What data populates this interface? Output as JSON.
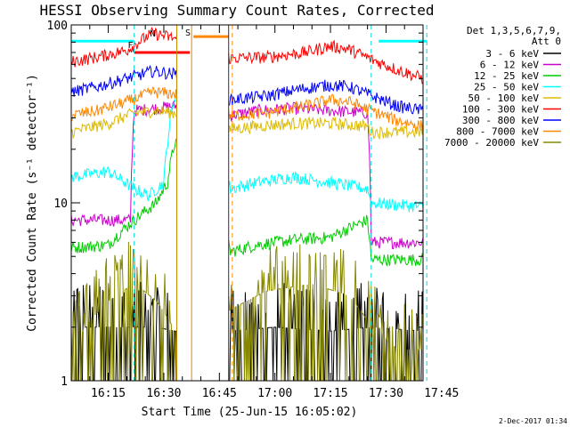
{
  "chart_data": {
    "type": "line",
    "title": "HESSI Observing Summary Count Rates, Corrected",
    "xlabel": "Start Time (25-Jun-15 16:05:02)",
    "ylabel": "Corrected Count Rate (s⁻¹ detector⁻¹)",
    "ylim": [
      1,
      100
    ],
    "yscale": "log",
    "xlim_minutes": [
      5,
      100
    ],
    "y_tick_labels": [
      "1",
      "10",
      "100"
    ],
    "x_tick_labels": [
      "16:15",
      "16:30",
      "16:45",
      "17:00",
      "17:15",
      "17:30",
      "17:45"
    ],
    "x_tick_minutes": [
      15,
      30,
      45,
      60,
      75,
      90,
      105
    ],
    "legend_header": [
      "Det 1,3,5,6,7,9,",
      "Att 0"
    ],
    "gaps": [
      [
        33.5,
        47.5
      ]
    ],
    "markers": {
      "dashed_cyan": [
        22,
        86,
        101
      ],
      "dashed_orange": [
        48.5
      ],
      "solid_orange": [
        37.5
      ],
      "cyan_bar_levels": [
        {
          "from": 5,
          "to": 22,
          "y": 81
        },
        {
          "from": 88,
          "to": 101,
          "y": 81
        }
      ],
      "red_bar_levels": [
        {
          "from": 22,
          "to": 37,
          "y": 70
        }
      ],
      "orange_bar_levels": [
        {
          "from": 38,
          "to": 47.5,
          "y": 86
        }
      ],
      "text_flags": [
        {
          "text": "F",
          "minute": 21,
          "y": 74
        },
        {
          "text": "N",
          "minute": 27,
          "y": 86
        },
        {
          "text": "S",
          "minute": 36.5,
          "y": 87
        }
      ]
    },
    "series": [
      {
        "name": "3 - 6 keV",
        "color": "#000000",
        "x": [
          5,
          15,
          22,
          28,
          33,
          48,
          60,
          75,
          86,
          100
        ],
        "y": [
          2,
          2,
          2,
          2,
          1.9,
          1.9,
          2,
          1.9,
          2,
          1.9
        ]
      },
      {
        "name": "6 - 12 keV",
        "color": "#cc00cc",
        "x": [
          5,
          15,
          21,
          22,
          28,
          33,
          48,
          55,
          65,
          75,
          85,
          86,
          100
        ],
        "y": [
          8,
          8,
          8,
          33,
          34,
          35,
          31,
          33,
          34,
          33,
          32,
          6,
          6
        ]
      },
      {
        "name": "12 - 25 keV",
        "color": "#00cc00",
        "x": [
          5,
          15,
          22,
          28,
          31,
          33,
          48,
          55,
          65,
          75,
          85,
          86,
          100
        ],
        "y": [
          5.6,
          5.8,
          8,
          10,
          13,
          22,
          5.3,
          5.8,
          6.2,
          6.4,
          8,
          4.8,
          4.8
        ]
      },
      {
        "name": "25 - 50 keV",
        "color": "#00ffff",
        "x": [
          5,
          15,
          22,
          26,
          30,
          33,
          48,
          55,
          65,
          75,
          85,
          86,
          100
        ],
        "y": [
          14,
          15,
          12,
          11,
          13,
          40,
          12,
          13,
          14,
          13,
          12,
          10,
          9.5
        ]
      },
      {
        "name": "50 - 100 keV",
        "color": "#ddbb00",
        "x": [
          5,
          15,
          22,
          28,
          33,
          48,
          55,
          65,
          75,
          85,
          86,
          100
        ],
        "y": [
          25,
          28,
          32,
          33,
          32,
          26,
          27,
          28,
          28,
          27,
          25,
          25
        ]
      },
      {
        "name": "100 - 300 keV",
        "color": "#ff0000",
        "x": [
          5,
          12,
          20,
          27,
          33,
          48,
          58,
          68,
          75,
          80,
          86,
          93,
          100
        ],
        "y": [
          62,
          66,
          72,
          90,
          84,
          65,
          66,
          70,
          76,
          73,
          64,
          56,
          50
        ]
      },
      {
        "name": "300 - 800 keV",
        "color": "#0000ff",
        "x": [
          5,
          12,
          20,
          27,
          33,
          48,
          58,
          68,
          75,
          80,
          86,
          93,
          100
        ],
        "y": [
          42,
          45,
          50,
          55,
          53,
          38,
          40,
          44,
          46,
          45,
          40,
          35,
          33
        ]
      },
      {
        "name": "800 - 7000 keV",
        "color": "#ff8800",
        "x": [
          5,
          12,
          20,
          27,
          33,
          48,
          58,
          68,
          75,
          80,
          86,
          93,
          100
        ],
        "y": [
          31,
          33,
          37,
          42,
          41,
          31,
          32,
          35,
          38,
          37,
          33,
          29,
          27
        ]
      },
      {
        "name": "7000 - 20000 keV",
        "color": "#888800",
        "x": [
          5,
          15,
          22,
          28,
          33,
          48,
          58,
          70,
          80,
          86,
          93,
          100
        ],
        "y": [
          1.5,
          2.8,
          3.5,
          2.8,
          1.9,
          2.5,
          3.2,
          3.5,
          3,
          2,
          1.5,
          1.5
        ]
      }
    ],
    "grid": false,
    "legend_position": "right"
  },
  "footer": {
    "timestamp": "2-Dec-2017 01:34"
  }
}
